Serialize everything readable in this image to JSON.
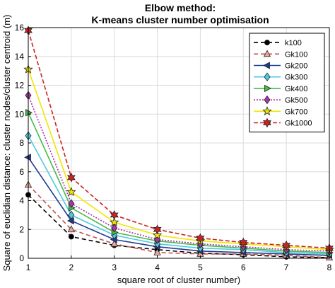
{
  "chart_data": {
    "type": "line",
    "title": [
      "Elbow method:",
      "K-means cluster number optimisation"
    ],
    "xlabel": "square root of cluster number)",
    "ylabel": "Square of euclidian distance: cluster nodes/cluster centroid (m)",
    "xlim": [
      1,
      8
    ],
    "ylim": [
      0,
      16
    ],
    "xticks": [
      1,
      2,
      3,
      4,
      5,
      6,
      7,
      8
    ],
    "yticks": [
      0,
      2,
      4,
      6,
      8,
      10,
      12,
      14,
      16
    ],
    "grid": true,
    "legend_position": "top-right",
    "x": [
      1,
      2,
      3,
      4,
      5,
      6,
      7,
      8
    ],
    "series": [
      {
        "name": "k100",
        "color": "#000000",
        "dash": "6,4",
        "marker": "circle",
        "values": [
          4.4,
          1.5,
          0.9,
          0.6,
          0.35,
          0.25,
          0.1,
          0.05
        ]
      },
      {
        "name": "Gk100",
        "color": "#c0504d",
        "dash": "6,4",
        "marker": "triangle-up",
        "values": [
          5.1,
          2.0,
          1.0,
          0.4,
          0.3,
          0.3,
          0.2,
          0.05
        ]
      },
      {
        "name": "Gk200",
        "color": "#1f3a93",
        "dash": "",
        "marker": "triangle-left",
        "values": [
          7.0,
          2.6,
          1.3,
          0.8,
          0.5,
          0.4,
          0.3,
          0.2
        ]
      },
      {
        "name": "Gk300",
        "color": "#4dc8e0",
        "dash": "",
        "marker": "diamond",
        "values": [
          8.5,
          3.0,
          1.6,
          1.0,
          0.7,
          0.6,
          0.4,
          0.3
        ]
      },
      {
        "name": "Gk400",
        "color": "#44bb44",
        "dash": "",
        "marker": "triangle-right",
        "values": [
          10.1,
          3.5,
          1.8,
          1.2,
          0.9,
          0.7,
          0.5,
          0.4
        ]
      },
      {
        "name": "Gk500",
        "color": "#aa33aa",
        "dash": "2,2",
        "marker": "diamond",
        "values": [
          11.3,
          3.8,
          2.1,
          1.3,
          1.0,
          0.8,
          0.6,
          0.5
        ]
      },
      {
        "name": "Gk700",
        "color": "#f2e600",
        "dash": "",
        "marker": "star",
        "values": [
          13.1,
          4.6,
          2.5,
          1.6,
          1.2,
          1.0,
          0.8,
          0.6
        ]
      },
      {
        "name": "Gk1000",
        "color": "#cc2222",
        "dash": "6,3",
        "marker": "hexagram",
        "values": [
          15.8,
          5.6,
          3.0,
          2.0,
          1.4,
          1.1,
          0.9,
          0.7
        ]
      }
    ]
  }
}
